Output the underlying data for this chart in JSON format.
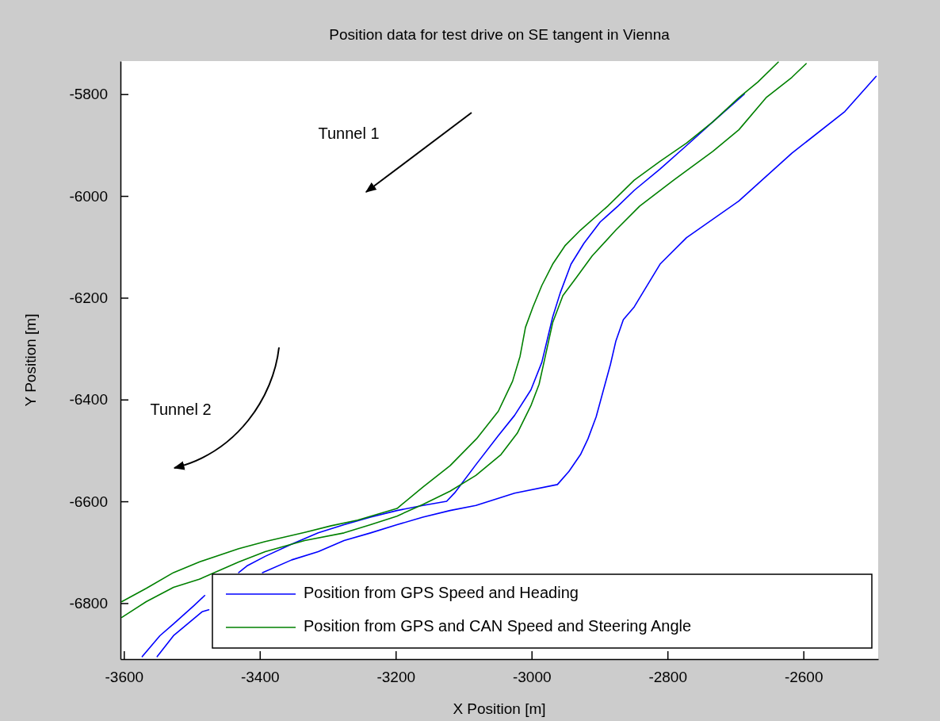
{
  "chart_data": {
    "type": "line",
    "title": "Position data for test drive on SE tangent in Vienna",
    "xlabel": "X Position [m]",
    "ylabel": "Y Position [m]",
    "xlim": [
      -3605,
      -2490
    ],
    "ylim": [
      -6910,
      -5735
    ],
    "xticks": [
      -3600,
      -3400,
      -3200,
      -3000,
      -2800,
      -2600
    ],
    "yticks": [
      -6800,
      -6600,
      -6400,
      -6200,
      -6000,
      -5800
    ],
    "grid": false,
    "legend": "bottom",
    "line_style": "solid",
    "marker": "none",
    "annotations": [
      "Tunnel 1",
      "Tunnel 2"
    ],
    "series": [
      {
        "name": "Position from GPS Speed and Heading",
        "color": "#0000ff",
        "x": [
          -3573,
          -3547,
          -3527,
          -3497,
          -3481,
          -3470,
          -3431,
          -3419,
          -3392,
          -3353,
          -3314,
          -3276,
          -3237,
          -3198,
          -3160,
          -3125,
          -3113,
          -3082,
          -3049,
          -3025,
          -3001,
          -2985,
          -2969,
          -2958,
          -2942,
          -2923,
          -2899,
          -2873,
          -2849,
          -2811,
          -2772,
          -2733,
          -2687
        ],
        "values": [
          -6905,
          -6864,
          -6841,
          -6805,
          -6785,
          null,
          -6740,
          -6727,
          -6708,
          -6684,
          -6662,
          -6646,
          -6631,
          -6618,
          -6608,
          -6600,
          -6583,
          -6528,
          -6471,
          -6431,
          -6381,
          -6327,
          -6238,
          -6191,
          -6134,
          -6093,
          -6051,
          -6020,
          -5989,
          -5947,
          -5901,
          -5854,
          -5800
        ]
      },
      {
        "color": "#0000ff",
        "x": [
          -3551,
          -3527,
          -3485,
          -3475,
          -3440,
          -3396,
          -3353,
          -3314,
          -3276,
          -3237,
          -3198,
          -3160,
          -3120,
          -3082,
          -3025,
          -2962,
          -2945,
          -2928,
          -2917,
          -2905,
          -2892,
          -2884,
          -2876,
          -2865,
          -2849,
          -2811,
          -2772,
          -2695,
          -2617,
          -2539,
          -2493
        ],
        "values": [
          -6905,
          -6864,
          -6817,
          -6813,
          null,
          -6740,
          -6715,
          -6699,
          -6677,
          -6662,
          -6646,
          -6631,
          -6618,
          -6608,
          -6584,
          -6567,
          -6541,
          -6508,
          -6477,
          -6434,
          -6370,
          -6331,
          -6285,
          -6243,
          -6218,
          -6134,
          -6082,
          -6010,
          -5916,
          -5834,
          -5765
        ]
      },
      {
        "name": "Position from GPS and CAN Speed and Steering Angle",
        "color": "#008000",
        "x": [
          -3603,
          -3567,
          -3527,
          -3489,
          -3431,
          -3392,
          -3334,
          -3295,
          -3256,
          -3198,
          -3160,
          -3120,
          -3081,
          -3049,
          -3028,
          -3017,
          -3009,
          -2998,
          -2985,
          -2969,
          -2951,
          -2928,
          -2888,
          -2849,
          -2811,
          -2772,
          -2733,
          -2695,
          -2667,
          -2637
        ],
        "values": [
          -6797,
          -6771,
          -6740,
          -6719,
          -6693,
          -6679,
          -6661,
          -6648,
          -6637,
          -6614,
          -6572,
          -6530,
          -6477,
          -6423,
          -6364,
          -6315,
          -6258,
          -6218,
          -6176,
          -6134,
          -6098,
          -6067,
          -6020,
          -5969,
          -5932,
          -5896,
          -5854,
          -5807,
          -5776,
          -5737
        ]
      },
      {
        "color": "#008000",
        "x": [
          -3603,
          -3567,
          -3527,
          -3489,
          -3431,
          -3392,
          -3334,
          -3276,
          -3237,
          -3198,
          -3160,
          -3120,
          -3082,
          -3045,
          -3021,
          -3001,
          -2989,
          -2981,
          -2969,
          -2954,
          -2934,
          -2911,
          -2876,
          -2841,
          -2791,
          -2733,
          -2695,
          -2655,
          -2617,
          -2596
        ],
        "values": [
          -6828,
          -6797,
          -6769,
          -6753,
          -6719,
          -6699,
          -6677,
          -6662,
          -6646,
          -6629,
          -6606,
          -6580,
          -6549,
          -6508,
          -6466,
          -6412,
          -6370,
          -6322,
          -6249,
          -6196,
          -6160,
          -6118,
          -6067,
          -6020,
          -5969,
          -5912,
          -5870,
          -5807,
          -5767,
          -5740
        ]
      }
    ]
  }
}
